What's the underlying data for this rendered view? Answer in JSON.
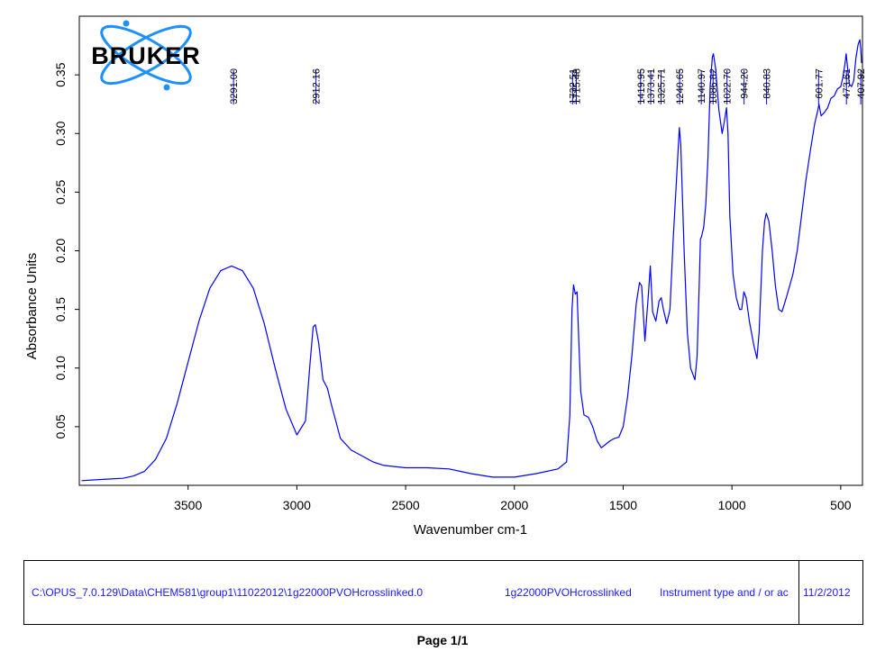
{
  "logo": {
    "text": "BRUKER"
  },
  "chart_data": {
    "type": "line",
    "title": "",
    "xlabel": "Wavenumber cm-1",
    "ylabel": "Absorbance Units",
    "xlim": [
      4000,
      400
    ],
    "ylim": [
      0,
      0.4
    ],
    "x_ticks": [
      3500,
      3000,
      2500,
      2000,
      1500,
      1000,
      500
    ],
    "y_ticks": [
      0.05,
      0.1,
      0.15,
      0.2,
      0.25,
      0.3,
      0.35
    ],
    "y_tick_labels": [
      "0.05",
      "0.10",
      "0.15",
      "0.20",
      "0.25",
      "0.30",
      "0.35"
    ],
    "grid": false,
    "line_color": "#0000ff",
    "peak_labels": [
      "3291.00",
      "2912.16",
      "1732.51",
      "1715.48",
      "1419.95",
      "1373.41",
      "1325.71",
      "1240.65",
      "1140.97",
      "1086.82",
      "1022.70",
      "944.20",
      "840.83",
      "601.77",
      "473.61",
      "407.92"
    ],
    "series": [
      {
        "x": [
          3990,
          3900,
          3800,
          3750,
          3700,
          3650,
          3600,
          3550,
          3500,
          3450,
          3400,
          3350,
          3300,
          3250,
          3200,
          3150,
          3100,
          3050,
          3000,
          2960,
          2940,
          2925,
          2915,
          2900,
          2880,
          2860,
          2840,
          2800,
          2750,
          2700,
          2650,
          2600,
          2500,
          2400,
          2300,
          2200,
          2100,
          2000,
          1900,
          1800,
          1760,
          1745,
          1735,
          1728,
          1720,
          1712,
          1705,
          1695,
          1680,
          1660,
          1640,
          1620,
          1600,
          1580,
          1560,
          1540,
          1520,
          1500,
          1480,
          1460,
          1440,
          1425,
          1415,
          1400,
          1385,
          1375,
          1365,
          1350,
          1335,
          1325,
          1315,
          1300,
          1285,
          1270,
          1255,
          1242,
          1235,
          1220,
          1205,
          1190,
          1170,
          1160,
          1150,
          1145,
          1140,
          1130,
          1120,
          1110,
          1100,
          1090,
          1085,
          1075,
          1060,
          1045,
          1035,
          1025,
          1018,
          1010,
          995,
          980,
          965,
          955,
          945,
          935,
          920,
          900,
          885,
          875,
          860,
          850,
          842,
          830,
          815,
          800,
          785,
          770,
          750,
          720,
          700,
          680,
          660,
          640,
          620,
          605,
          600,
          590,
          575,
          560,
          545,
          530,
          515,
          500,
          490,
          480,
          475,
          468,
          460,
          450,
          440,
          430,
          420,
          412,
          408,
          404
        ],
        "y": [
          0.004,
          0.005,
          0.006,
          0.008,
          0.012,
          0.022,
          0.04,
          0.07,
          0.105,
          0.14,
          0.168,
          0.183,
          0.187,
          0.183,
          0.168,
          0.138,
          0.1,
          0.065,
          0.043,
          0.055,
          0.103,
          0.135,
          0.137,
          0.122,
          0.09,
          0.083,
          0.068,
          0.04,
          0.03,
          0.025,
          0.02,
          0.017,
          0.015,
          0.015,
          0.014,
          0.01,
          0.007,
          0.007,
          0.01,
          0.014,
          0.02,
          0.06,
          0.15,
          0.171,
          0.163,
          0.165,
          0.128,
          0.08,
          0.06,
          0.058,
          0.05,
          0.038,
          0.032,
          0.035,
          0.038,
          0.04,
          0.041,
          0.05,
          0.075,
          0.11,
          0.155,
          0.173,
          0.17,
          0.123,
          0.16,
          0.187,
          0.148,
          0.14,
          0.157,
          0.16,
          0.15,
          0.138,
          0.15,
          0.21,
          0.26,
          0.305,
          0.29,
          0.2,
          0.13,
          0.1,
          0.09,
          0.11,
          0.175,
          0.21,
          0.212,
          0.22,
          0.24,
          0.28,
          0.34,
          0.365,
          0.368,
          0.355,
          0.32,
          0.3,
          0.31,
          0.322,
          0.3,
          0.23,
          0.18,
          0.16,
          0.15,
          0.15,
          0.165,
          0.16,
          0.14,
          0.12,
          0.108,
          0.13,
          0.2,
          0.225,
          0.232,
          0.225,
          0.2,
          0.17,
          0.15,
          0.148,
          0.16,
          0.18,
          0.2,
          0.23,
          0.26,
          0.285,
          0.308,
          0.32,
          0.325,
          0.315,
          0.318,
          0.322,
          0.33,
          0.332,
          0.338,
          0.34,
          0.348,
          0.36,
          0.368,
          0.355,
          0.342,
          0.34,
          0.345,
          0.365,
          0.376,
          0.38,
          0.372,
          0.36
        ]
      }
    ]
  },
  "footer": {
    "path": "C:\\OPUS_7.0.129\\Data\\CHEM581\\group1\\11022012\\1g22000PVOHcrosslinked.0",
    "sample": "1g22000PVOHcrosslinked",
    "instrument": "Instrument type and / or ac",
    "date": "11/2/2012",
    "page": "Page 1/1"
  }
}
